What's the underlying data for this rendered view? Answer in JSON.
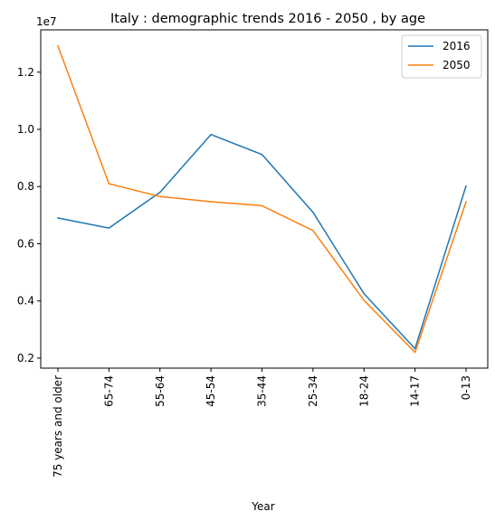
{
  "chart_data": {
    "type": "line",
    "title": "Italy : demographic trends 2016 - 2050 , by age",
    "xlabel": "Year",
    "ylabel": "",
    "y_offset_label": "1e7",
    "categories": [
      "75 years and older",
      "65-74",
      "55-64",
      "45-54",
      "35-44",
      "25-34",
      "18-24",
      "14-17",
      "0-13"
    ],
    "series": [
      {
        "name": "2016",
        "color": "#1f77b4",
        "values": [
          6900000,
          6550000,
          7800000,
          9820000,
          9120000,
          7100000,
          4250000,
          2330000,
          8020000
        ]
      },
      {
        "name": "2050",
        "color": "#ff7f0e",
        "values": [
          12920000,
          8100000,
          7650000,
          7470000,
          7330000,
          6460000,
          4020000,
          2200000,
          7470000
        ]
      }
    ],
    "yticks": [
      2000000,
      4000000,
      6000000,
      8000000,
      10000000,
      12000000
    ],
    "ytick_labels": [
      "0.2",
      "0.4",
      "0.6",
      "0.8",
      "1.0",
      "1.2"
    ],
    "ylim": [
      1650000,
      13480000
    ],
    "legend_position": "top-right",
    "grid": false
  }
}
